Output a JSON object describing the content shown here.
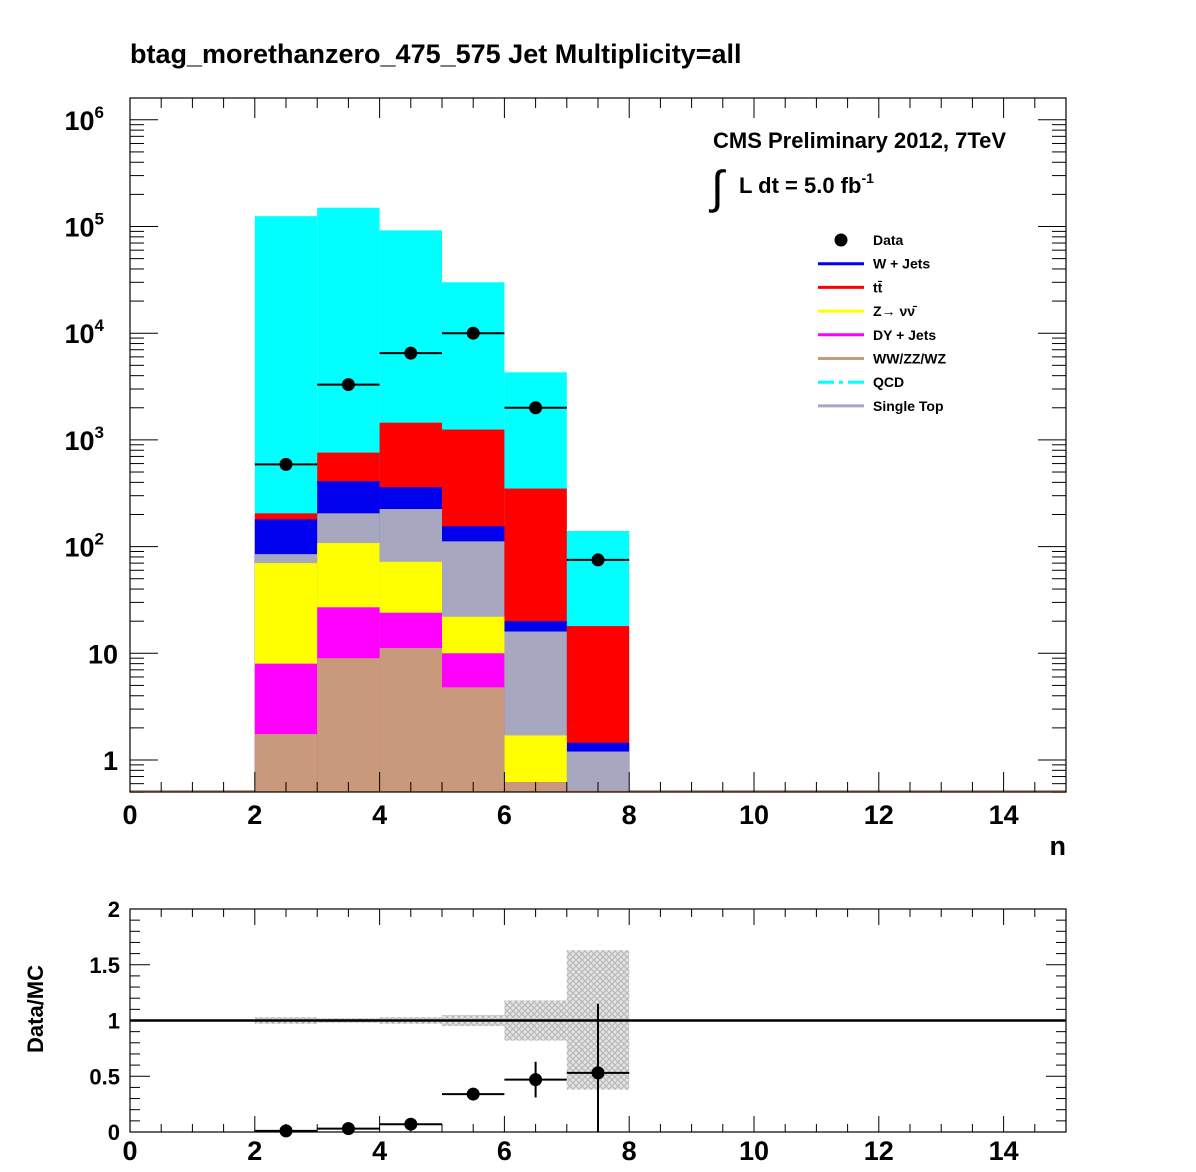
{
  "title": "btag_morethanzero_475_575    Jet Multiplicity=all",
  "cms_label": "CMS Preliminary 2012, 7TeV",
  "lumi_label": "L dt = 5.0 fb",
  "lumi_exponent": "-1",
  "lumi_integral": "∫",
  "chart_data": [
    {
      "type": "bar",
      "stacked": true,
      "log_y": true,
      "xlabel": "n",
      "ylabel": "",
      "xlim": [
        0,
        15
      ],
      "ylim": [
        0.5,
        1500000
      ],
      "x_ticks": [
        0,
        2,
        4,
        6,
        8,
        10,
        12,
        14
      ],
      "y_ticks": [
        {
          "value": 1,
          "label": "1",
          "sup": ""
        },
        {
          "value": 10,
          "label": "10",
          "sup": ""
        },
        {
          "value": 100,
          "label": "10",
          "sup": "2"
        },
        {
          "value": 1000,
          "label": "10",
          "sup": "3"
        },
        {
          "value": 10000,
          "label": "10",
          "sup": "4"
        },
        {
          "value": 100000,
          "label": "10",
          "sup": "5"
        },
        {
          "value": 1000000,
          "label": "10",
          "sup": "6"
        }
      ],
      "bin_edges": [
        2,
        3,
        4,
        5,
        6,
        7,
        8
      ],
      "stack_series": [
        {
          "name": "WW/ZZ/WZ",
          "color": "#c8997a",
          "cumulative": [
            1.75,
            9,
            11.2,
            4.8,
            0.62,
            0
          ]
        },
        {
          "name": "DY + Jets",
          "color": "#ff00ff",
          "cumulative": [
            8,
            27,
            24,
            10,
            0.62,
            0
          ]
        },
        {
          "name": "Z→ νν̄",
          "color": "#ffff00",
          "cumulative": [
            70,
            108,
            72,
            22,
            1.7,
            0
          ]
        },
        {
          "name": "Single Top",
          "color": "#a8a7c0",
          "cumulative": [
            85,
            205,
            225,
            112,
            16,
            1.2
          ]
        },
        {
          "name": "W + Jets",
          "color": "#0000ee",
          "cumulative": [
            180,
            410,
            360,
            155,
            20,
            1.45
          ]
        },
        {
          "name": "tt̄",
          "color": "#ff0000",
          "cumulative": [
            205,
            760,
            1450,
            1250,
            350,
            18
          ]
        },
        {
          "name": "QCD",
          "color": "#00ffff",
          "cumulative": [
            125000,
            150000,
            92000,
            30000,
            4300,
            140
          ]
        }
      ],
      "data_series": {
        "name": "Data",
        "color": "#000000",
        "x": [
          2.5,
          3.5,
          4.5,
          5.5,
          6.5,
          7.5
        ],
        "y": [
          590,
          3300,
          6500,
          10000,
          2000,
          75
        ]
      },
      "legend": {
        "placement": "top-right",
        "entries": [
          {
            "label": "Data",
            "style": "marker",
            "color": "#000000"
          },
          {
            "label": "W + Jets",
            "style": "line",
            "color": "#0000ee"
          },
          {
            "label": "tt̄",
            "style": "line",
            "color": "#ff0000"
          },
          {
            "label": "Z→ νν̄",
            "style": "line",
            "color": "#ffff00"
          },
          {
            "label": "DY + Jets",
            "style": "line",
            "color": "#ff00ff"
          },
          {
            "label": "WW/ZZ/WZ",
            "style": "line",
            "color": "#c8997a"
          },
          {
            "label": "QCD",
            "style": "dash",
            "color": "#00ffff"
          },
          {
            "label": "Single Top",
            "style": "line",
            "color": "#a8a7c0"
          }
        ]
      }
    },
    {
      "type": "scatter",
      "xlabel": "",
      "ylabel": "Data/MC",
      "xlim": [
        0,
        15
      ],
      "ylim": [
        0,
        2
      ],
      "x_ticks": [
        0,
        2,
        4,
        6,
        8,
        10,
        12,
        14
      ],
      "y_ticks": [
        {
          "value": 0,
          "label": "0"
        },
        {
          "value": 0.5,
          "label": "0.5"
        },
        {
          "value": 1,
          "label": "1"
        },
        {
          "value": 1.5,
          "label": "1.5"
        },
        {
          "value": 2,
          "label": "2"
        }
      ],
      "reference_line": 1,
      "uncertainty_band": {
        "color": "#cccccc",
        "bins": [
          {
            "x0": 2,
            "x1": 3,
            "lo": 0.97,
            "hi": 1.03
          },
          {
            "x0": 3,
            "x1": 4,
            "lo": 0.98,
            "hi": 1.02
          },
          {
            "x0": 4,
            "x1": 5,
            "lo": 0.97,
            "hi": 1.03
          },
          {
            "x0": 5,
            "x1": 6,
            "lo": 0.95,
            "hi": 1.05
          },
          {
            "x0": 6,
            "x1": 7,
            "lo": 0.82,
            "hi": 1.18
          },
          {
            "x0": 7,
            "x1": 8,
            "lo": 0.38,
            "hi": 1.63
          }
        ]
      },
      "points": {
        "x": [
          2.5,
          3.5,
          4.5,
          5.5,
          6.5,
          7.5
        ],
        "y": [
          0.01,
          0.03,
          0.07,
          0.34,
          0.47,
          0.53
        ],
        "y_err": [
          0.003,
          0.005,
          0.01,
          0.02,
          0.16,
          0.62
        ]
      }
    }
  ]
}
